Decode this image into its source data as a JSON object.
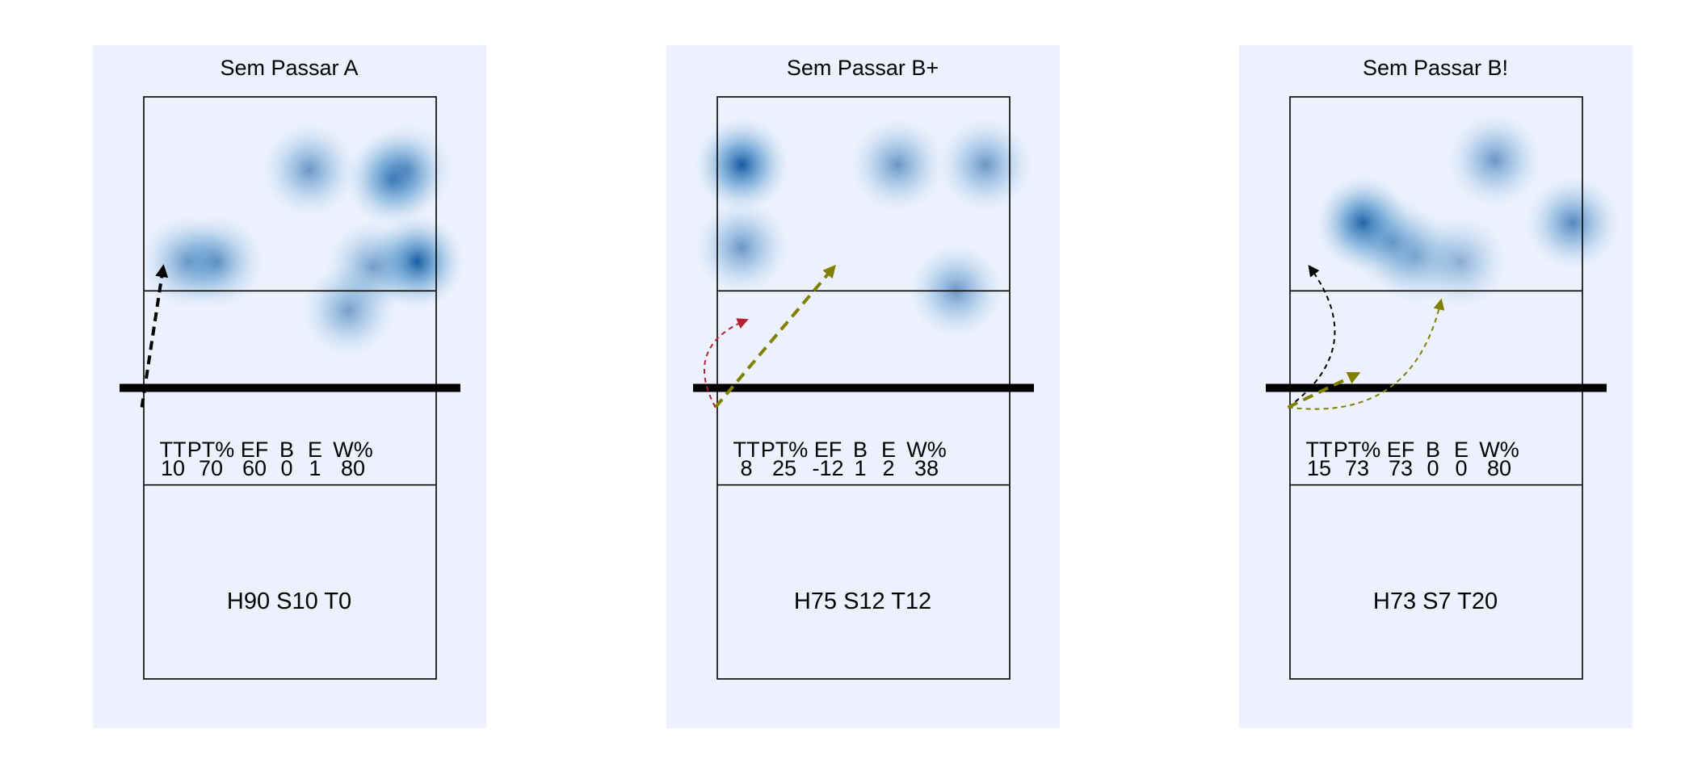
{
  "chart_data": [
    {
      "type": "heatmap",
      "title": "Sem Passar A",
      "court": {
        "x_range": [
          0.5,
          3.5
        ],
        "y_range": [
          0.5,
          6.5
        ],
        "net_y": 3.5,
        "attack_lines_y": [
          2.5,
          4.5
        ]
      },
      "heat": [
        {
          "x": 2.2,
          "y": 5.75,
          "w": 0.6
        },
        {
          "x": 3.05,
          "y": 5.65,
          "w": 0.8
        },
        {
          "x": 3.2,
          "y": 5.75,
          "w": 0.5
        },
        {
          "x": 0.95,
          "y": 4.8,
          "w": 0.6
        },
        {
          "x": 1.25,
          "y": 4.8,
          "w": 0.6
        },
        {
          "x": 3.3,
          "y": 4.8,
          "w": 1.0
        },
        {
          "x": 2.85,
          "y": 4.75,
          "w": 0.55
        },
        {
          "x": 2.6,
          "y": 4.3,
          "w": 0.55
        }
      ],
      "arrows": [
        {
          "from": [
            0.48,
            3.3
          ],
          "to": [
            0.7,
            4.75
          ],
          "color": "#000000",
          "curvature": 0.0,
          "width": 4,
          "dash": "11,7",
          "head": "large"
        }
      ],
      "stats": {
        "headers": [
          "TT",
          "PT%",
          "EF",
          "B",
          "E",
          "W%"
        ],
        "values": [
          "10",
          "70",
          "60",
          "0",
          "1",
          "80"
        ]
      },
      "set_stats": "H90 S10 T0"
    },
    {
      "type": "heatmap",
      "title": "Sem Passar B+",
      "court": {
        "x_range": [
          0.5,
          3.5
        ],
        "y_range": [
          0.5,
          6.5
        ],
        "net_y": 3.5,
        "attack_lines_y": [
          2.5,
          4.5
        ]
      },
      "heat": [
        {
          "x": 0.75,
          "y": 5.8,
          "w": 1.0
        },
        {
          "x": 2.35,
          "y": 5.8,
          "w": 0.6
        },
        {
          "x": 3.25,
          "y": 5.8,
          "w": 0.6
        },
        {
          "x": 0.75,
          "y": 4.95,
          "w": 0.6
        },
        {
          "x": 2.95,
          "y": 4.5,
          "w": 0.6
        }
      ],
      "arrows": [
        {
          "from": [
            0.48,
            3.3
          ],
          "to": [
            1.7,
            4.75
          ],
          "color": "#808000",
          "curvature": 0.0,
          "width": 4,
          "dash": "13,8",
          "head": "large"
        },
        {
          "from": [
            0.48,
            3.3
          ],
          "to": [
            0.8,
            4.2
          ],
          "color": "#b22234",
          "curvature": -0.55,
          "width": 2,
          "dash": "6,5",
          "head": "small"
        }
      ],
      "stats": {
        "headers": [
          "TT",
          "PT%",
          "EF",
          "B",
          "E",
          "W%"
        ],
        "values": [
          "8",
          "25",
          "-12",
          "1",
          "2",
          "38"
        ]
      },
      "set_stats": "H75 S12 T12"
    },
    {
      "type": "heatmap",
      "title": "Sem Passar B!",
      "court": {
        "x_range": [
          0.5,
          3.5
        ],
        "y_range": [
          0.5,
          6.5
        ],
        "net_y": 3.5,
        "attack_lines_y": [
          2.5,
          4.5
        ]
      },
      "heat": [
        {
          "x": 1.25,
          "y": 5.2,
          "w": 1.0
        },
        {
          "x": 2.6,
          "y": 5.85,
          "w": 0.6
        },
        {
          "x": 3.4,
          "y": 5.2,
          "w": 0.7
        },
        {
          "x": 1.8,
          "y": 4.85,
          "w": 0.5
        },
        {
          "x": 2.25,
          "y": 4.8,
          "w": 0.45
        },
        {
          "x": 1.55,
          "y": 5.0,
          "w": 0.5
        }
      ],
      "arrows": [
        {
          "from": [
            0.48,
            3.3
          ],
          "to": [
            0.7,
            4.75
          ],
          "color": "#000000",
          "curvature": 0.5,
          "width": 2,
          "dash": "6,5",
          "head": "small"
        },
        {
          "from": [
            0.48,
            3.3
          ],
          "to": [
            2.05,
            4.4
          ],
          "color": "#808000",
          "curvature": 0.45,
          "width": 2,
          "dash": "6,5",
          "head": "small"
        },
        {
          "from": [
            0.48,
            3.3
          ],
          "to": [
            1.2,
            3.65
          ],
          "color": "#808000",
          "curvature": 0.0,
          "width": 4,
          "dash": "13,8",
          "head": "large"
        }
      ],
      "stats": {
        "headers": [
          "TT",
          "PT%",
          "EF",
          "B",
          "E",
          "W%"
        ],
        "values": [
          "15",
          "73",
          "73",
          "0",
          "0",
          "80"
        ]
      },
      "set_stats": "H73 S7 T20"
    }
  ],
  "colors": {
    "panel_background": "#ecf1fd",
    "heat_low": "#ecf1fd",
    "heat_high": "#08519c",
    "court_line": "#000000",
    "net": "#000000"
  }
}
